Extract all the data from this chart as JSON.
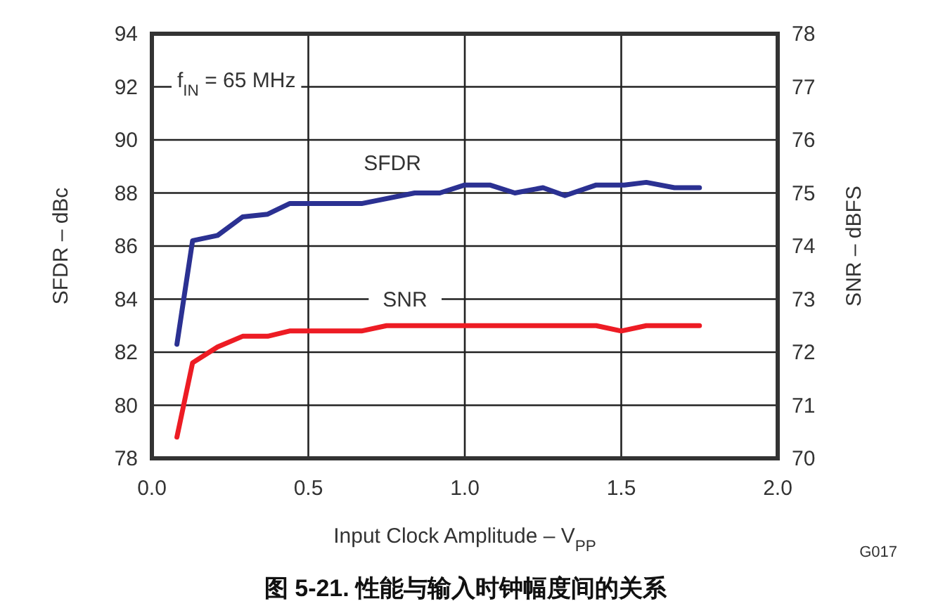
{
  "chart_data": {
    "type": "line",
    "title": "图 5-21. 性能与输入时钟幅度间的关系",
    "xlabel": "Input Clock Amplitude – V$_{PP}$",
    "ylabel": "SFDR – dBc",
    "y2label": "SNR – dBFS",
    "annotations": [
      "f$_{IN}$ = 65 MHz",
      "G017"
    ],
    "xlim": [
      0,
      2
    ],
    "ylim": [
      78,
      94
    ],
    "y2lim": [
      70,
      78
    ],
    "xticks": [
      {
        "value": 0,
        "label": "0.0"
      },
      {
        "value": 0.5,
        "label": "0.5"
      },
      {
        "value": 1,
        "label": "1.0"
      },
      {
        "value": 1.5,
        "label": "1.5"
      },
      {
        "value": 2,
        "label": "2.0"
      }
    ],
    "yticks": [
      78,
      80,
      82,
      84,
      86,
      88,
      90,
      92,
      94
    ],
    "y2ticks": [
      70,
      71,
      72,
      73,
      74,
      75,
      76,
      77,
      78
    ],
    "grid": true,
    "line_style": "solid",
    "marker": "none",
    "series": [
      {
        "name": "SFDR",
        "color": "#2b3192",
        "x": [
          0.08,
          0.13,
          0.21,
          0.29,
          0.37,
          0.44,
          0.67,
          0.84,
          0.92,
          1.0,
          1.08,
          1.16,
          1.25,
          1.32,
          1.42,
          1.51,
          1.58,
          1.67,
          1.75
        ],
        "values": [
          82.3,
          86.2,
          86.4,
          87.1,
          87.2,
          87.6,
          87.6,
          88.0,
          88.0,
          88.3,
          88.3,
          88.0,
          88.2,
          87.9,
          88.3,
          88.3,
          88.4,
          88.2,
          88.2
        ]
      },
      {
        "name": "SNR",
        "color": "#ed1c24",
        "axis": "y2",
        "x": [
          0.08,
          0.13,
          0.21,
          0.29,
          0.37,
          0.44,
          0.67,
          0.75,
          1.42,
          1.5,
          1.58,
          1.75
        ],
        "values": [
          70.4,
          71.8,
          72.1,
          72.3,
          72.3,
          72.4,
          72.4,
          72.5,
          72.5,
          72.4,
          72.5,
          72.5
        ]
      }
    ]
  }
}
